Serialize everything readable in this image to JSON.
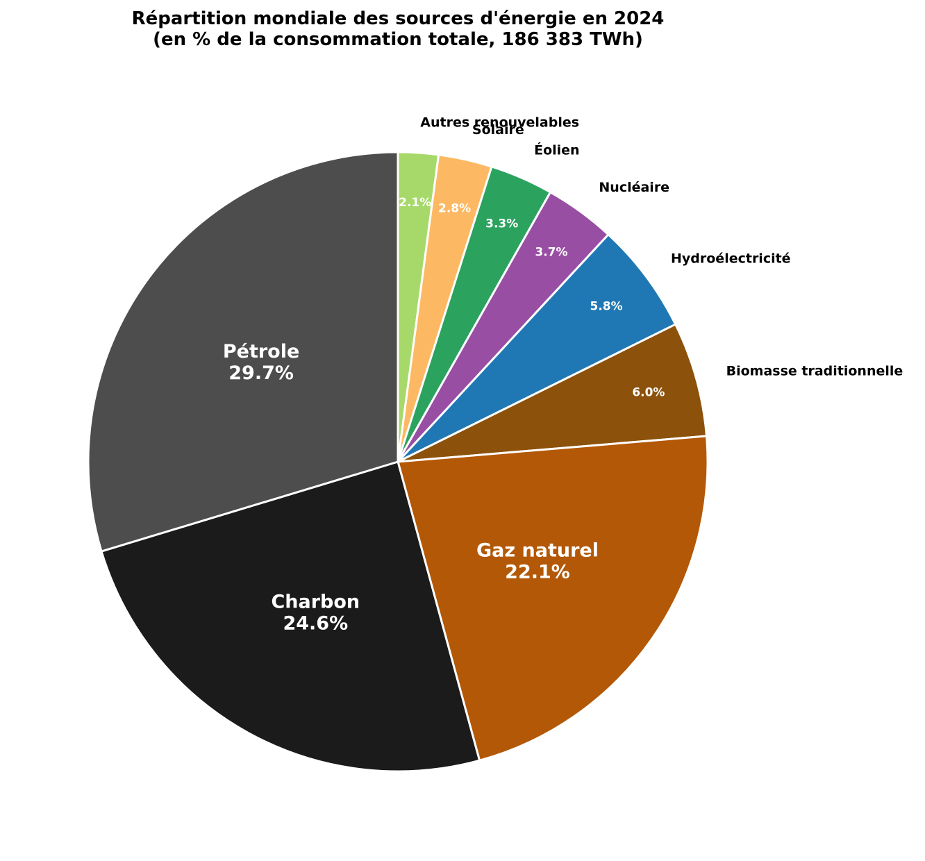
{
  "chart_data": {
    "type": "pie",
    "title": "Répartition mondiale des sources d'énergie en 2024",
    "subtitle": "(en % de la consommation totale, 186 383 TWh)",
    "start_angle": 90,
    "direction": "clockwise",
    "slices": [
      {
        "label": "Autres renouvelables",
        "value": 2.1,
        "pct_label": "2.1%",
        "color": "#a6d96a",
        "inside_label": false
      },
      {
        "label": "Solaire",
        "value": 2.8,
        "pct_label": "2.8%",
        "color": "#fdb863",
        "inside_label": false
      },
      {
        "label": "Éolien",
        "value": 3.3,
        "pct_label": "3.3%",
        "color": "#2ca25f",
        "inside_label": false
      },
      {
        "label": "Nucléaire",
        "value": 3.7,
        "pct_label": "3.7%",
        "color": "#984ea3",
        "inside_label": false
      },
      {
        "label": "Hydroélectricité",
        "value": 5.8,
        "pct_label": "5.8%",
        "color": "#1f78b4",
        "inside_label": false
      },
      {
        "label": "Biomasse traditionnelle",
        "value": 6.0,
        "pct_label": "6.0%",
        "color": "#8c510a",
        "inside_label": false
      },
      {
        "label": "Gaz naturel",
        "value": 22.1,
        "pct_label": "22.1%",
        "color": "#b35806",
        "inside_label": true
      },
      {
        "label": "Charbon",
        "value": 24.6,
        "pct_label": "24.6%",
        "color": "#1b1b1b",
        "inside_label": true
      },
      {
        "label": "Pétrole",
        "value": 29.7,
        "pct_label": "29.7%",
        "color": "#4d4d4d",
        "inside_label": true
      }
    ],
    "edge_color": "#ffffff"
  }
}
